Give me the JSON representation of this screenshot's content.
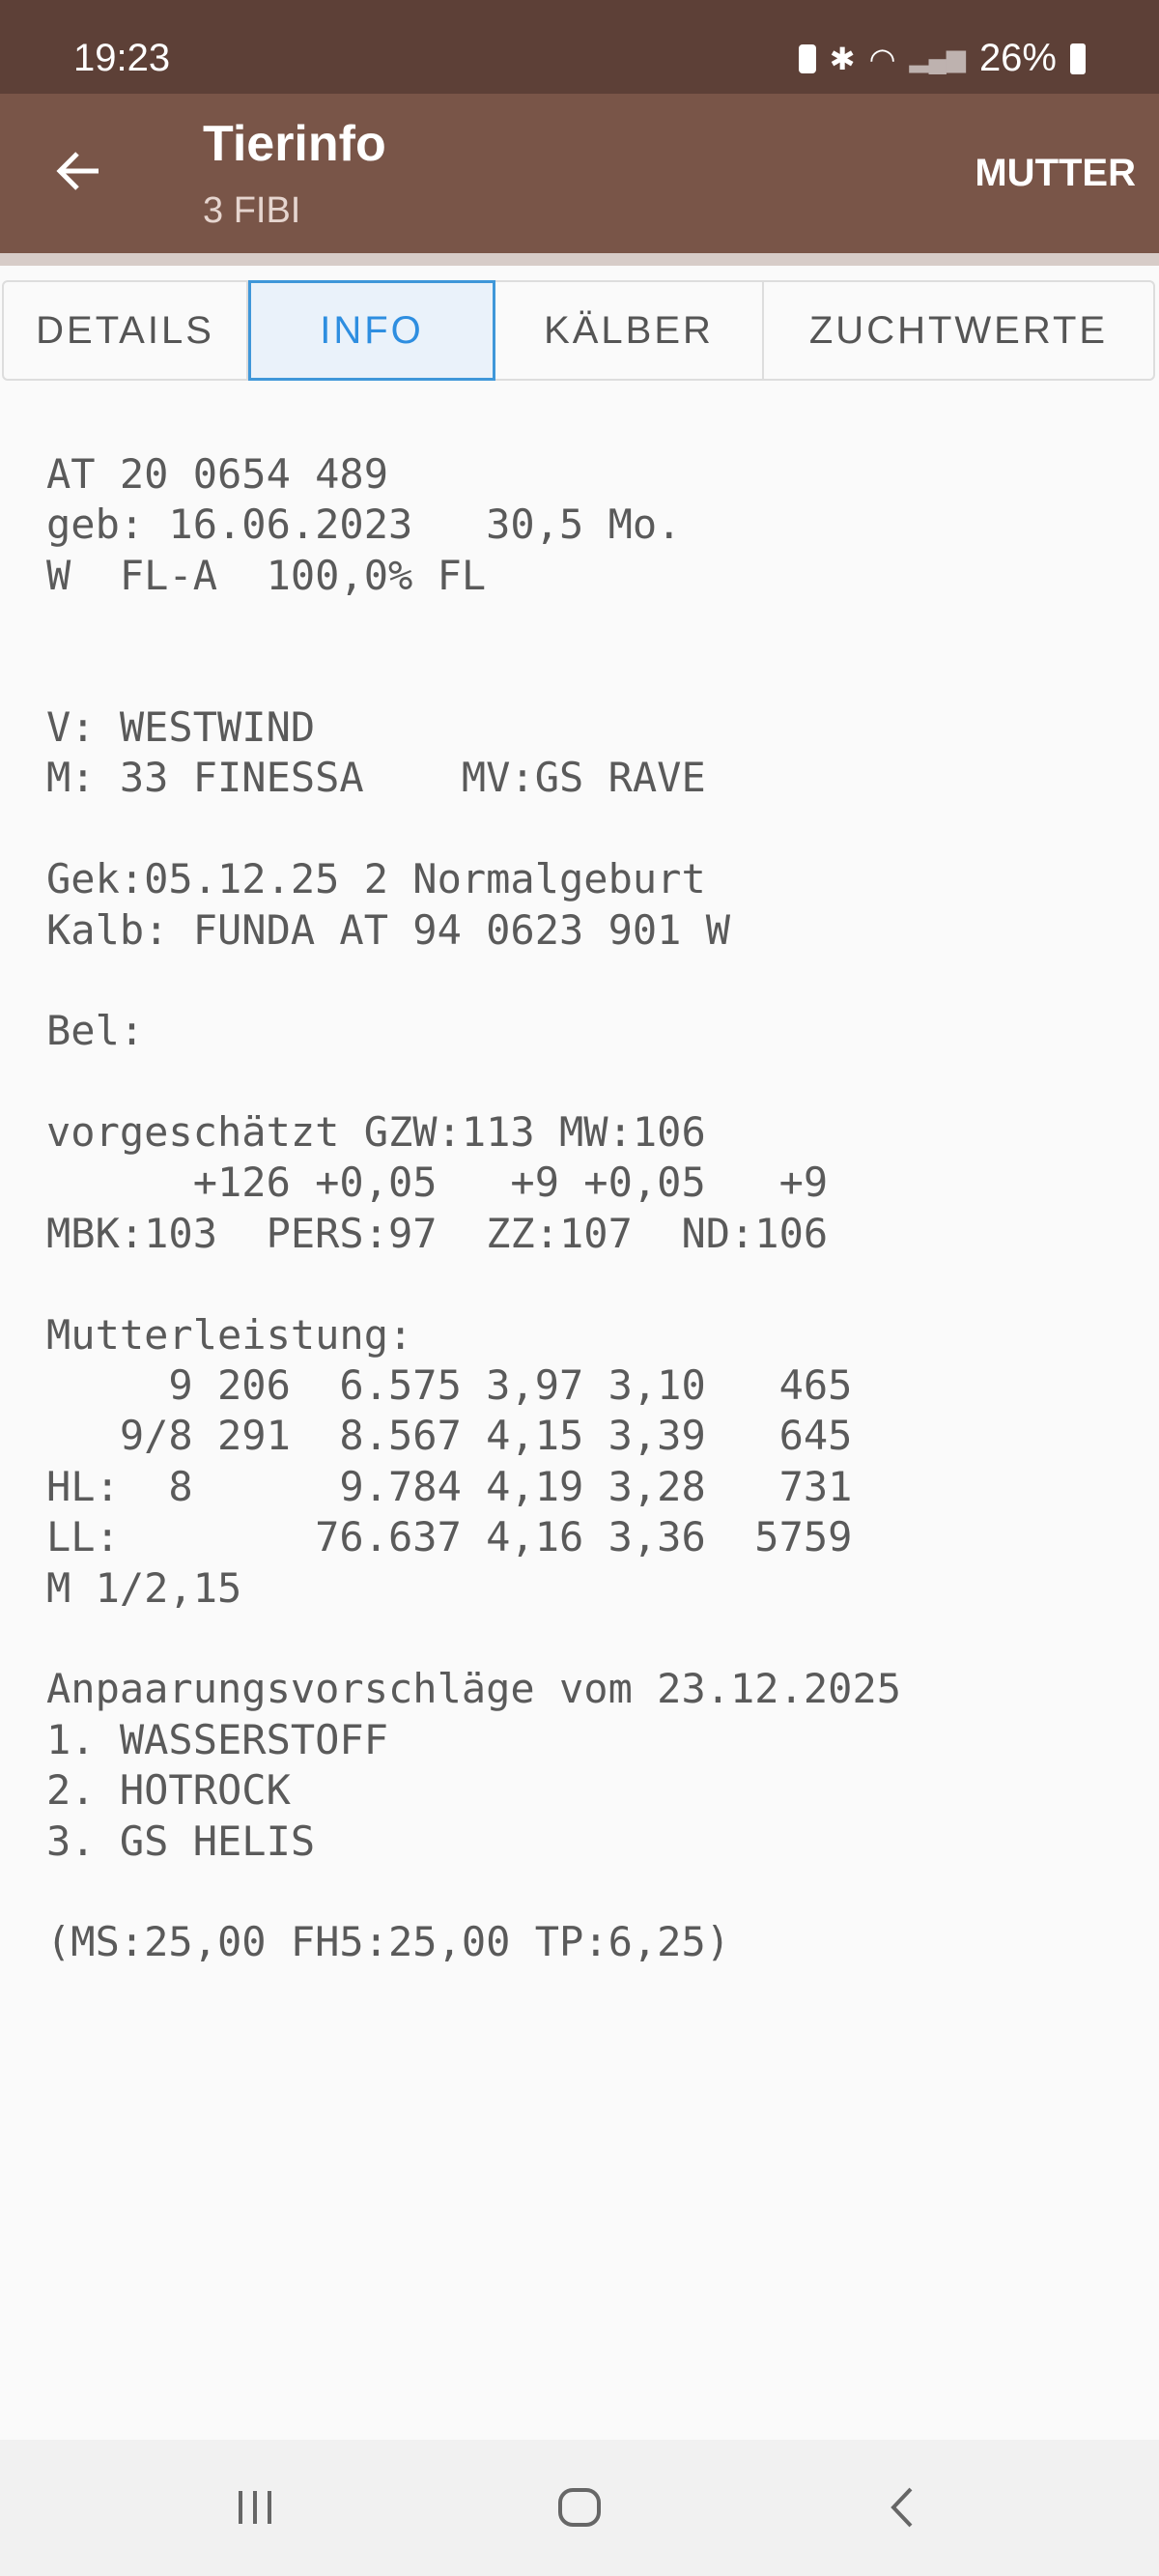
{
  "status_bar": {
    "time": "19:23",
    "battery": "26%"
  },
  "app_bar": {
    "title": "Tierinfo",
    "subtitle": "3 FIBI",
    "action": "MUTTER"
  },
  "tabs": [
    {
      "label": "DETAILS",
      "active": false
    },
    {
      "label": "INFO",
      "active": true
    },
    {
      "label": "KÄLBER",
      "active": false
    },
    {
      "label": "ZUCHTWERTE",
      "active": false
    }
  ],
  "info_lines": [
    "AT 20 0654 489",
    "geb: 16.06.2023   30,5 Mo.",
    "W  FL-A  100,0% FL",
    "",
    "",
    "V: WESTWIND",
    "M: 33 FINESSA    MV:GS RAVE",
    "",
    "Gek:05.12.25 2 Normalgeburt",
    "Kalb: FUNDA AT 94 0623 901 W",
    "",
    "Bel:",
    "",
    "vorgeschätzt GZW:113 MW:106",
    "      +126 +0,05   +9 +0,05   +9",
    "MBK:103  PERS:97  ZZ:107  ND:106",
    "",
    "Mutterleistung:",
    "     9 206  6.575 3,97 3,10   465",
    "   9/8 291  8.567 4,15 3,39   645",
    "HL:  8      9.784 4,19 3,28   731",
    "LL:        76.637 4,16 3,36  5759",
    "M 1/2,15",
    "",
    "Anpaarungsvorschläge vom 23.12.2025",
    "1. WASSERSTOFF",
    "2. HOTROCK",
    "3. GS HELIS",
    "",
    "(MS:25,00 FH5:25,00 TP:6,25)"
  ],
  "colors": {
    "status_bar": "#5d4037",
    "app_bar": "#795548",
    "accent": "#2e8ee0"
  }
}
